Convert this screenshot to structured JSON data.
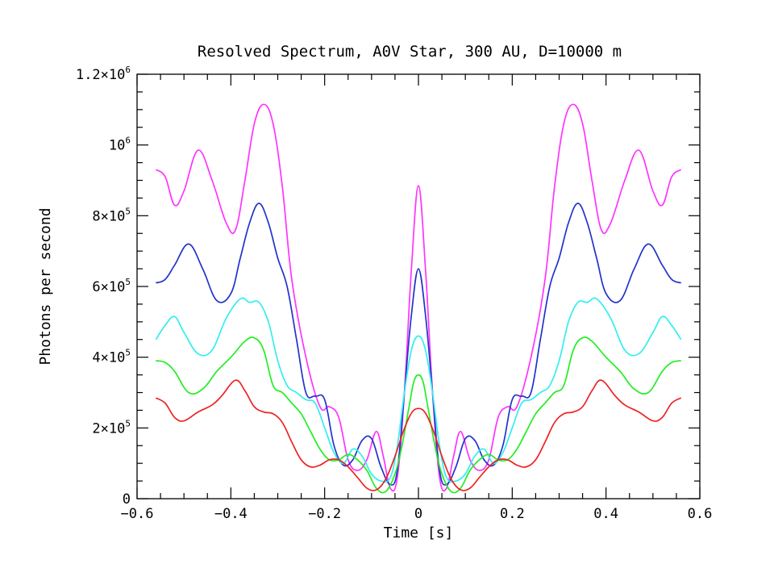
{
  "chart_data": {
    "type": "line",
    "title": "Resolved Spectrum, A0V Star, 300 AU, D=10000 m",
    "xlabel": "Time [s]",
    "ylabel": "Photons per second",
    "xlim": [
      -0.6,
      0.6
    ],
    "ylim": [
      0,
      1200000
    ],
    "grid": false,
    "x_ticks": [
      {
        "value": -0.6,
        "label": "−0.6"
      },
      {
        "value": -0.4,
        "label": "−0.4"
      },
      {
        "value": -0.2,
        "label": "−0.2"
      },
      {
        "value": 0,
        "label": "0"
      },
      {
        "value": 0.2,
        "label": "0.2"
      },
      {
        "value": 0.4,
        "label": "0.4"
      },
      {
        "value": 0.6,
        "label": "0.6"
      }
    ],
    "y_ticks": [
      {
        "value": 0,
        "mant": "0",
        "exp": ""
      },
      {
        "value": 200000,
        "mant": "2×10",
        "exp": "5"
      },
      {
        "value": 400000,
        "mant": "4×10",
        "exp": "5"
      },
      {
        "value": 600000,
        "mant": "6×10",
        "exp": "5"
      },
      {
        "value": 800000,
        "mant": "8×10",
        "exp": "5"
      },
      {
        "value": 1000000,
        "mant": "10",
        "exp": "6"
      },
      {
        "value": 1200000,
        "mant": "1.2×10",
        "exp": "6"
      }
    ],
    "series": [
      {
        "color": "#ff33ff",
        "x": [
          -0.56,
          -0.54,
          -0.52,
          -0.5,
          -0.47,
          -0.44,
          -0.41,
          -0.39,
          -0.37,
          -0.35,
          -0.33,
          -0.31,
          -0.29,
          -0.27,
          -0.24,
          -0.21,
          -0.19,
          -0.17,
          -0.15,
          -0.13,
          -0.11,
          -0.09,
          -0.075,
          -0.06,
          -0.045,
          -0.03,
          -0.015,
          0
        ],
        "y": [
          930000,
          910000,
          830000,
          870000,
          985000,
          900000,
          780000,
          760000,
          900000,
          1060000,
          1115000,
          1060000,
          880000,
          620000,
          400000,
          260000,
          260000,
          230000,
          110000,
          80000,
          110000,
          190000,
          120000,
          30000,
          60000,
          300000,
          650000,
          885000
        ],
        "mirror": true
      },
      {
        "color": "#2233cc",
        "x": [
          -0.56,
          -0.54,
          -0.52,
          -0.49,
          -0.46,
          -0.43,
          -0.4,
          -0.38,
          -0.36,
          -0.34,
          -0.32,
          -0.3,
          -0.28,
          -0.26,
          -0.24,
          -0.22,
          -0.2,
          -0.18,
          -0.16,
          -0.14,
          -0.12,
          -0.1,
          -0.08,
          -0.06,
          -0.045,
          -0.03,
          -0.015,
          0
        ],
        "y": [
          610000,
          620000,
          660000,
          720000,
          650000,
          560000,
          580000,
          680000,
          780000,
          835000,
          780000,
          680000,
          600000,
          450000,
          300000,
          290000,
          280000,
          150000,
          95000,
          110000,
          165000,
          170000,
          90000,
          40000,
          80000,
          300000,
          520000,
          650000
        ],
        "mirror": true
      },
      {
        "color": "#33eeee",
        "x": [
          -0.56,
          -0.54,
          -0.52,
          -0.5,
          -0.47,
          -0.44,
          -0.41,
          -0.38,
          -0.36,
          -0.34,
          -0.32,
          -0.3,
          -0.28,
          -0.26,
          -0.24,
          -0.22,
          -0.2,
          -0.18,
          -0.16,
          -0.14,
          -0.12,
          -0.1,
          -0.08,
          -0.06,
          -0.045,
          -0.03,
          -0.015,
          0
        ],
        "y": [
          450000,
          490000,
          515000,
          470000,
          410000,
          420000,
          510000,
          565000,
          555000,
          555000,
          500000,
          390000,
          320000,
          300000,
          280000,
          270000,
          200000,
          130000,
          100000,
          140000,
          120000,
          70000,
          50000,
          60000,
          150000,
          300000,
          420000,
          460000
        ],
        "mirror": true
      },
      {
        "color": "#22ee22",
        "x": [
          -0.56,
          -0.54,
          -0.52,
          -0.49,
          -0.46,
          -0.43,
          -0.4,
          -0.37,
          -0.35,
          -0.33,
          -0.31,
          -0.29,
          -0.27,
          -0.25,
          -0.23,
          -0.21,
          -0.19,
          -0.17,
          -0.15,
          -0.13,
          -0.11,
          -0.09,
          -0.07,
          -0.05,
          -0.035,
          -0.02,
          -0.01,
          0
        ],
        "y": [
          390000,
          385000,
          360000,
          300000,
          310000,
          360000,
          400000,
          445000,
          455000,
          420000,
          320000,
          300000,
          270000,
          240000,
          190000,
          140000,
          110000,
          110000,
          125000,
          110000,
          80000,
          30000,
          20000,
          70000,
          150000,
          260000,
          330000,
          350000
        ],
        "mirror": true
      },
      {
        "color": "#ee2222",
        "x": [
          -0.56,
          -0.54,
          -0.52,
          -0.5,
          -0.47,
          -0.44,
          -0.42,
          -0.39,
          -0.37,
          -0.35,
          -0.33,
          -0.31,
          -0.29,
          -0.27,
          -0.25,
          -0.23,
          -0.21,
          -0.19,
          -0.17,
          -0.15,
          -0.13,
          -0.11,
          -0.09,
          -0.07,
          -0.05,
          -0.035,
          -0.02,
          -0.01,
          0
        ],
        "y": [
          285000,
          270000,
          230000,
          220000,
          245000,
          265000,
          290000,
          335000,
          305000,
          260000,
          245000,
          240000,
          215000,
          160000,
          110000,
          90000,
          95000,
          110000,
          110000,
          90000,
          60000,
          30000,
          25000,
          55000,
          120000,
          180000,
          230000,
          250000,
          255000
        ],
        "mirror": true
      }
    ]
  }
}
